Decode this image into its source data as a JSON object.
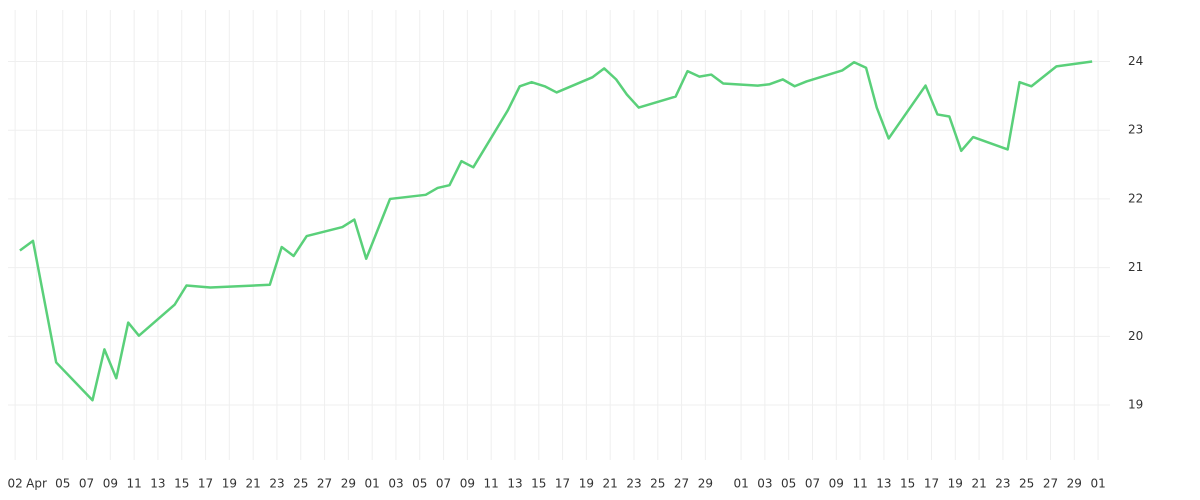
{
  "chart_data": {
    "type": "line",
    "x": [
      0.4,
      1.5,
      3.45,
      6.5,
      7.5,
      8.5,
      9.5,
      10.4,
      13.4,
      14.4,
      16.4,
      21.4,
      22.4,
      23.4,
      24.5,
      27.5,
      28.5,
      29.5,
      31.5,
      34.5,
      35.5,
      36.5,
      37.5,
      38.5,
      41.4,
      42.4,
      43.4,
      44.5,
      45.5,
      48.5,
      49.5,
      50.5,
      51.4,
      52.4,
      55.5,
      56.5,
      57.5,
      58.5,
      59.5,
      62.4,
      63.4,
      64.5,
      65.5,
      66.5,
      69.5,
      70.5,
      71.5,
      72.4,
      73.4,
      76.5,
      77.5,
      78.5,
      79.5,
      80.5,
      83.4,
      84.4,
      85.4,
      87.5,
      90.5
    ],
    "series": [
      {
        "color": "#5ad07a",
        "values": [
          21.25,
          21.39,
          19.62,
          19.07,
          19.81,
          19.39,
          20.2,
          20.01,
          20.46,
          20.74,
          20.71,
          20.75,
          21.3,
          21.17,
          21.46,
          21.59,
          21.7,
          21.13,
          22.0,
          22.06,
          22.16,
          22.2,
          22.55,
          22.46,
          23.29,
          23.64,
          23.7,
          23.64,
          23.55,
          23.77,
          23.9,
          23.74,
          23.52,
          23.33,
          23.49,
          23.86,
          23.78,
          23.81,
          23.68,
          23.65,
          23.67,
          23.74,
          23.64,
          23.71,
          23.87,
          23.99,
          23.91,
          23.33,
          22.88,
          23.65,
          23.23,
          23.2,
          22.7,
          22.9,
          22.72,
          23.7,
          23.64,
          23.93,
          24.0
        ]
      }
    ],
    "xlim": [
      -0.6,
      92
    ],
    "xticks": [
      {
        "value": 0,
        "label": "02"
      },
      {
        "value": 1.8,
        "label": "Apr"
      },
      {
        "value": 4,
        "label": "05"
      },
      {
        "value": 6,
        "label": "07"
      },
      {
        "value": 8,
        "label": "09"
      },
      {
        "value": 10,
        "label": "11"
      },
      {
        "value": 12,
        "label": "13"
      },
      {
        "value": 14,
        "label": "15"
      },
      {
        "value": 16,
        "label": "17"
      },
      {
        "value": 18,
        "label": "19"
      },
      {
        "value": 20,
        "label": "21"
      },
      {
        "value": 22,
        "label": "23"
      },
      {
        "value": 24,
        "label": "25"
      },
      {
        "value": 26,
        "label": "27"
      },
      {
        "value": 28,
        "label": "29"
      },
      {
        "value": 30,
        "label": "01"
      },
      {
        "value": 32,
        "label": "03"
      },
      {
        "value": 34,
        "label": "05"
      },
      {
        "value": 36,
        "label": "07"
      },
      {
        "value": 38,
        "label": "09"
      },
      {
        "value": 40,
        "label": "11"
      },
      {
        "value": 42,
        "label": "13"
      },
      {
        "value": 44,
        "label": "15"
      },
      {
        "value": 46,
        "label": "17"
      },
      {
        "value": 48,
        "label": "19"
      },
      {
        "value": 50,
        "label": "21"
      },
      {
        "value": 52,
        "label": "23"
      },
      {
        "value": 54,
        "label": "25"
      },
      {
        "value": 56,
        "label": "27"
      },
      {
        "value": 58,
        "label": "29"
      },
      {
        "value": 61,
        "label": "01"
      },
      {
        "value": 63,
        "label": "03"
      },
      {
        "value": 65,
        "label": "05"
      },
      {
        "value": 67,
        "label": "07"
      },
      {
        "value": 69,
        "label": "09"
      },
      {
        "value": 71,
        "label": "11"
      },
      {
        "value": 73,
        "label": "13"
      },
      {
        "value": 75,
        "label": "15"
      },
      {
        "value": 77,
        "label": "17"
      },
      {
        "value": 79,
        "label": "19"
      },
      {
        "value": 81,
        "label": "21"
      },
      {
        "value": 83,
        "label": "23"
      },
      {
        "value": 85,
        "label": "25"
      },
      {
        "value": 87,
        "label": "27"
      },
      {
        "value": 89,
        "label": "29"
      },
      {
        "value": 91,
        "label": "01"
      }
    ],
    "ylim": [
      18.2,
      24.75
    ],
    "yticks": [
      19,
      20,
      21,
      22,
      23,
      24
    ],
    "grid": true
  }
}
